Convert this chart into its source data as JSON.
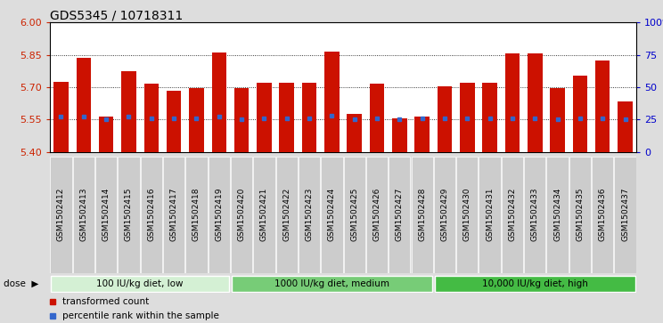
{
  "title": "GDS5345 / 10718311",
  "samples": [
    "GSM1502412",
    "GSM1502413",
    "GSM1502414",
    "GSM1502415",
    "GSM1502416",
    "GSM1502417",
    "GSM1502418",
    "GSM1502419",
    "GSM1502420",
    "GSM1502421",
    "GSM1502422",
    "GSM1502423",
    "GSM1502424",
    "GSM1502425",
    "GSM1502426",
    "GSM1502427",
    "GSM1502428",
    "GSM1502429",
    "GSM1502430",
    "GSM1502431",
    "GSM1502432",
    "GSM1502433",
    "GSM1502434",
    "GSM1502435",
    "GSM1502436",
    "GSM1502437"
  ],
  "bar_tops": [
    5.725,
    5.835,
    5.565,
    5.775,
    5.715,
    5.685,
    5.695,
    5.86,
    5.695,
    5.72,
    5.72,
    5.72,
    5.865,
    5.575,
    5.715,
    5.555,
    5.565,
    5.705,
    5.72,
    5.72,
    5.855,
    5.855,
    5.695,
    5.755,
    5.825,
    5.635
  ],
  "blue_dot_y": [
    5.565,
    5.562,
    5.55,
    5.565,
    5.556,
    5.555,
    5.555,
    5.565,
    5.552,
    5.556,
    5.556,
    5.556,
    5.566,
    5.551,
    5.556,
    5.551,
    5.556,
    5.556,
    5.556,
    5.556,
    5.556,
    5.556,
    5.551,
    5.556,
    5.556,
    5.551
  ],
  "bar_bottom": 5.4,
  "ylim": [
    5.4,
    6.0
  ],
  "right_ylim": [
    0,
    100
  ],
  "right_yticks": [
    0,
    25,
    50,
    75,
    100
  ],
  "right_yticklabels": [
    "0",
    "25",
    "50",
    "75",
    "100%"
  ],
  "left_yticks": [
    5.4,
    5.55,
    5.7,
    5.85,
    6.0
  ],
  "hlines": [
    5.55,
    5.7,
    5.85
  ],
  "bar_color": "#cc1100",
  "blue_color": "#3366cc",
  "groups": [
    {
      "label": "100 IU/kg diet, low",
      "start": 0,
      "end": 8,
      "color": "#d4f0d4"
    },
    {
      "label": "1000 IU/kg diet, medium",
      "start": 8,
      "end": 17,
      "color": "#77cc77"
    },
    {
      "label": "10,000 IU/kg diet, high",
      "start": 17,
      "end": 26,
      "color": "#44bb44"
    }
  ],
  "dose_label": "dose",
  "legend_items": [
    {
      "color": "#cc1100",
      "label": "transformed count"
    },
    {
      "color": "#3366cc",
      "label": "percentile rank within the sample"
    }
  ],
  "bg_color": "#dddddd",
  "plot_bg": "#ffffff",
  "xtick_bg": "#cccccc",
  "title_fontsize": 10,
  "tick_fontsize": 6.5,
  "bar_width": 0.65
}
